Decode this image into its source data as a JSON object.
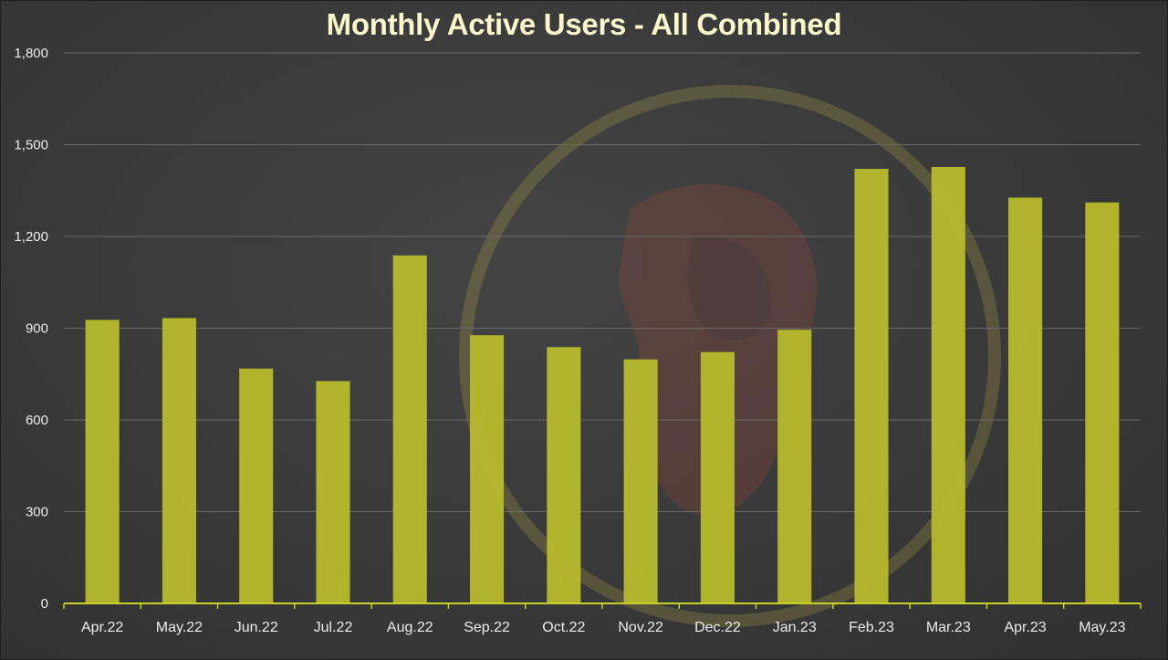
{
  "chart_data": {
    "type": "bar",
    "title": "Monthly Active Users - All Combined",
    "xlabel": "",
    "ylabel": "",
    "ylim": [
      0,
      1800
    ],
    "yticks": [
      0,
      300,
      600,
      900,
      1200,
      1500,
      1800
    ],
    "ytick_labels": [
      "0",
      "300",
      "600",
      "900",
      "1,200",
      "1,500",
      "1,800"
    ],
    "grid": true,
    "legend": "none",
    "categories": [
      "Apr.22",
      "May.22",
      "Jun.22",
      "Jul.22",
      "Aug.22",
      "Sep.22",
      "Oct.22",
      "Nov.22",
      "Dec.22",
      "Jan.23",
      "Feb.23",
      "Mar.23",
      "Apr.23",
      "May.23"
    ],
    "values": [
      927,
      933,
      768,
      727,
      1138,
      877,
      838,
      798,
      822,
      895,
      1421,
      1427,
      1327,
      1311
    ],
    "bar_color": "#b5b82c",
    "axis_color": "#c8d12a",
    "grid_color": "#6a6a6a"
  }
}
